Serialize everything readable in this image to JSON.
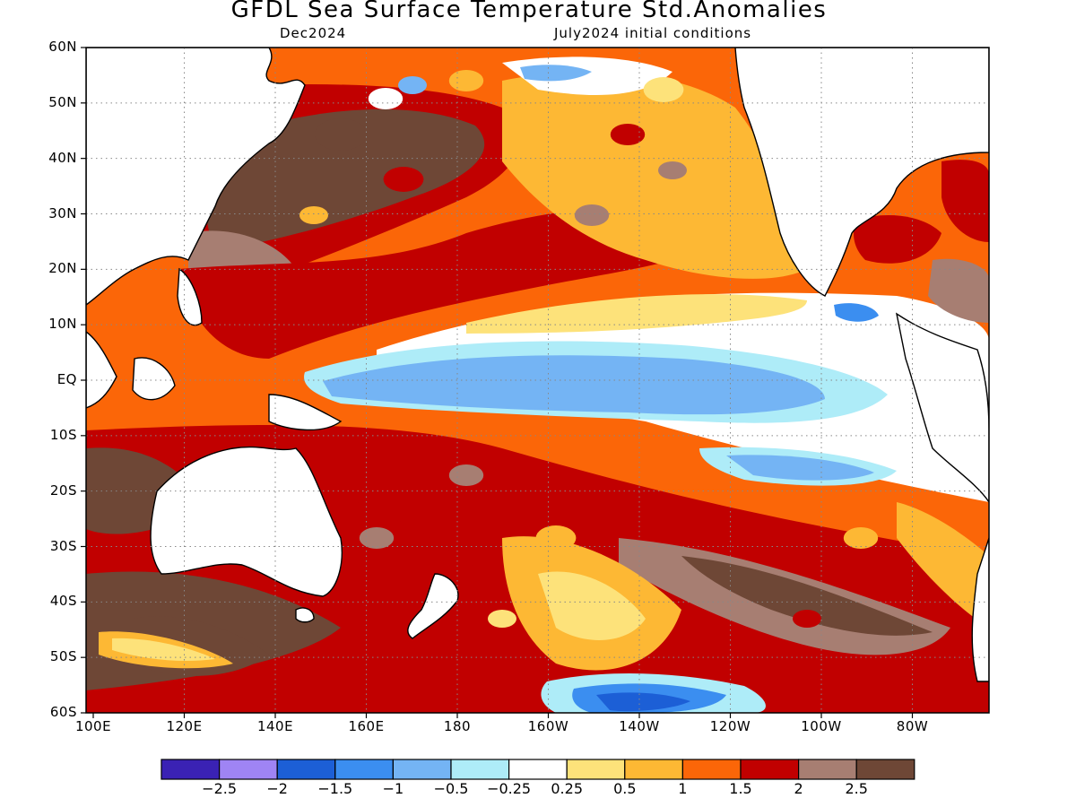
{
  "title": "GFDL Sea Surface Temperature Std.Anomalies",
  "subtitle_left": "Dec2024",
  "subtitle_right": "July2024 initial conditions",
  "lat_labels": [
    "60N",
    "50N",
    "40N",
    "30N",
    "20N",
    "10N",
    "EQ",
    "10S",
    "20S",
    "30S",
    "40S",
    "50S",
    "60S"
  ],
  "lon_labels": [
    "100E",
    "120E",
    "140E",
    "160E",
    "180",
    "160W",
    "140W",
    "120W",
    "100W",
    "80W"
  ],
  "colorbar": {
    "colors": [
      "#3a22b4",
      "#9f84f4",
      "#1c5fd6",
      "#3b8ef0",
      "#74b4f4",
      "#aeecf8",
      "#ffffff",
      "#fde27a",
      "#fdb834",
      "#fb6608",
      "#c10000",
      "#a77e72",
      "#6e4736"
    ],
    "labels": [
      "−2.5",
      "−2",
      "−1.5",
      "−1",
      "−0.5",
      "−0.25",
      "0.25",
      "0.5",
      "1",
      "1.5",
      "2",
      "2.5"
    ]
  },
  "map": {
    "variable": "SST standardized anomaly",
    "projection": "lat-lon",
    "lon_range": [
      "100E",
      "70W"
    ],
    "lat_range": [
      "60S",
      "60N"
    ],
    "grid": "dotted",
    "features": [
      "coastlines",
      "filled contours"
    ]
  }
}
